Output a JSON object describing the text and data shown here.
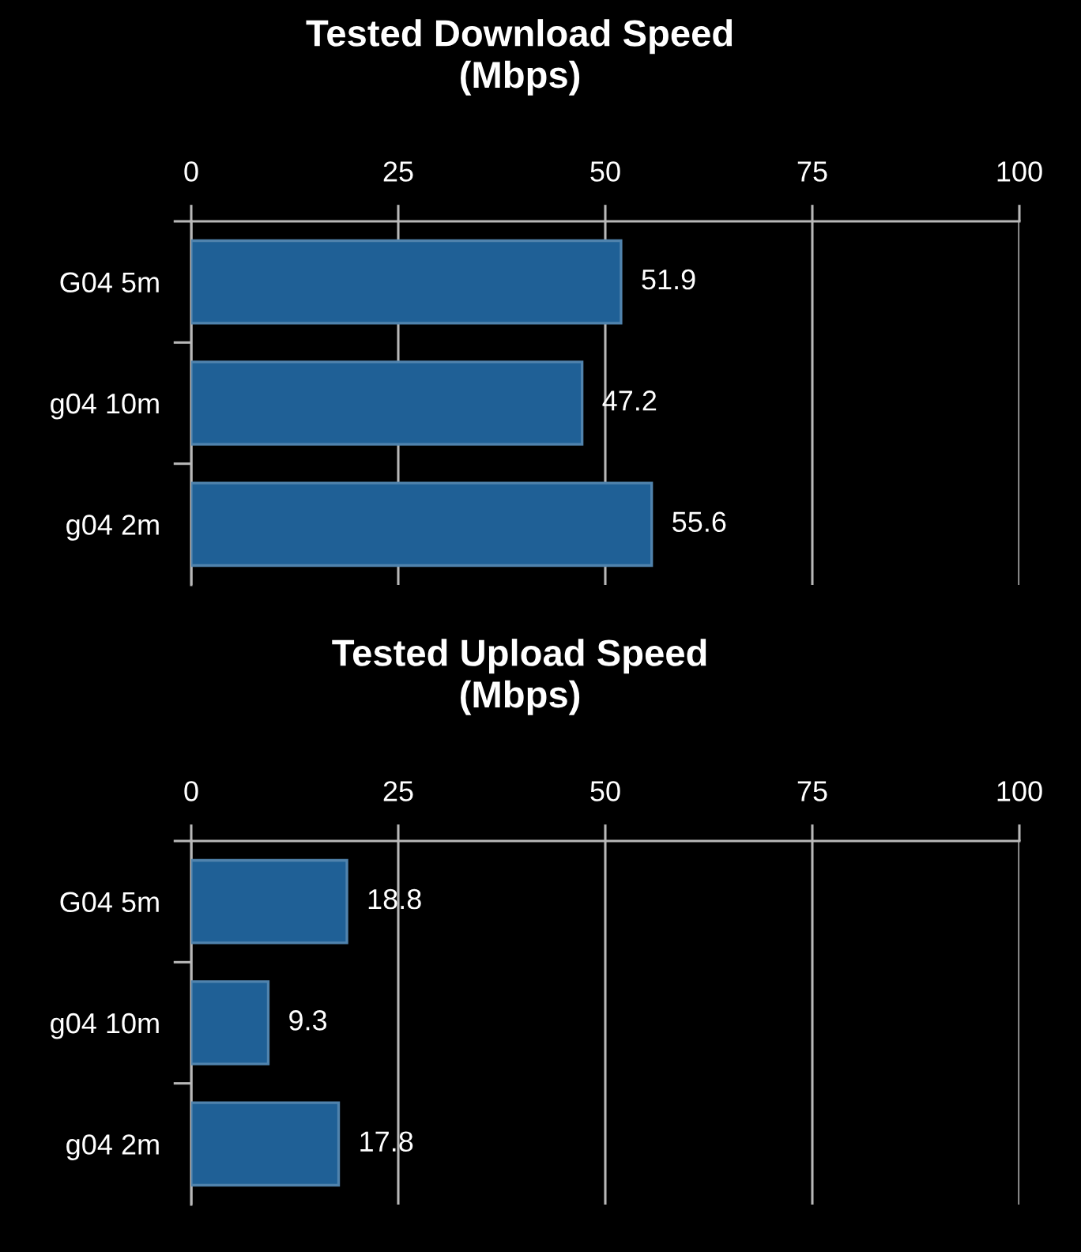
{
  "chart_data": [
    {
      "type": "bar",
      "orientation": "horizontal",
      "title": "Tested Download Speed\n(Mbps)",
      "categories": [
        "G04 5m",
        "g04 10m",
        "g04 2m"
      ],
      "values": [
        51.9,
        47.2,
        55.6
      ],
      "color": "#1f6096",
      "xlim": [
        0,
        100
      ],
      "xticks": [
        0,
        25,
        50,
        75,
        100
      ],
      "grid": "x",
      "data_labels": true
    },
    {
      "type": "bar",
      "orientation": "horizontal",
      "title": "Tested Upload Speed\n(Mbps)",
      "categories": [
        "G04 5m",
        "g04 10m",
        "g04 2m"
      ],
      "values": [
        18.8,
        9.3,
        17.8
      ],
      "color": "#1f6096",
      "xlim": [
        0,
        100
      ],
      "xticks": [
        0,
        25,
        50,
        75,
        100
      ],
      "grid": "x",
      "data_labels": true
    }
  ]
}
